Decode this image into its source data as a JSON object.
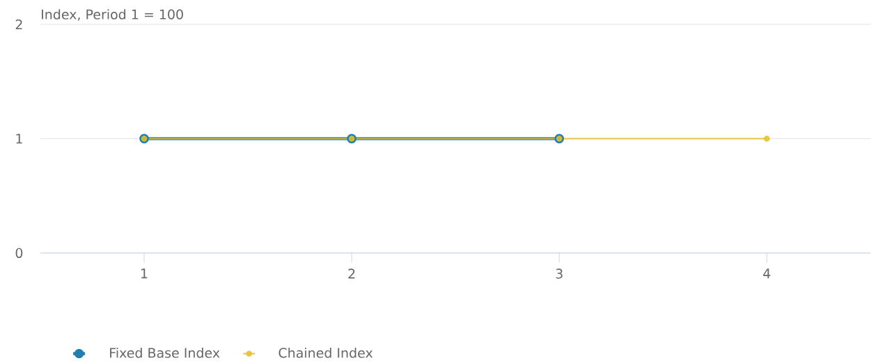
{
  "chart_data": {
    "type": "line",
    "ylabel": "Index, Period 1 = 100",
    "x": [
      1,
      2,
      3,
      4
    ],
    "xlim": [
      0.5,
      4.5
    ],
    "xticks": [
      1,
      2,
      3,
      4
    ],
    "ylim": [
      0,
      2
    ],
    "yticks": [
      0,
      1,
      2
    ],
    "grid": "y",
    "legend": "bottom",
    "marker": "circle",
    "line_style": "solid",
    "series": [
      {
        "name": "Fixed Base Index",
        "color": "#1f7fb0",
        "values": [
          1,
          1,
          1,
          null
        ]
      },
      {
        "name": "Chained Index",
        "color": "#e6c02e",
        "values": [
          1,
          1,
          1,
          1
        ]
      }
    ]
  }
}
